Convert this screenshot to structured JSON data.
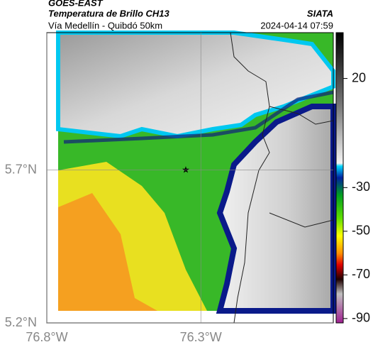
{
  "header": {
    "left": [
      "GOES-EAST",
      "Temperatura de Brillo CH13",
      "Vía Medellín - Quibdó 50km"
    ],
    "right": [
      "SIATA",
      "2024-04-14 07:59"
    ]
  },
  "axes": {
    "xlim": [
      -76.8,
      -75.87
    ],
    "ylim": [
      5.2,
      6.15
    ],
    "xticks": [
      {
        "value": -76.8,
        "label": "76.8°W"
      },
      {
        "value": -76.3,
        "label": "76.3°W"
      }
    ],
    "yticks": [
      {
        "value": 5.7,
        "label": "5.7°N"
      },
      {
        "value": 5.2,
        "label": "5.2°N"
      }
    ]
  },
  "colorbar": {
    "lim": [
      -92,
      41
    ],
    "ticks": [
      20,
      -30,
      -50,
      -70,
      -90
    ]
  }
}
